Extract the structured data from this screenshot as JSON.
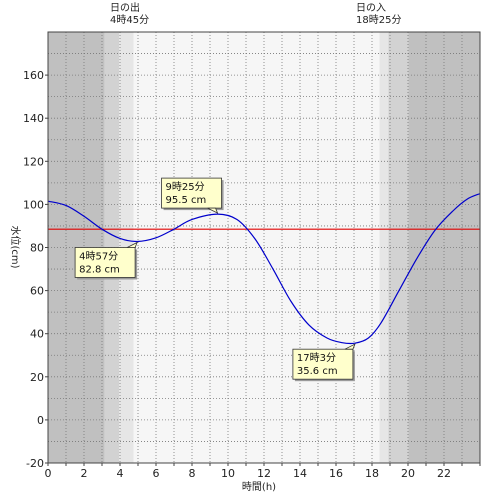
{
  "chart_data": {
    "type": "line",
    "xlabel": "時間(h)",
    "ylabel": "水位(cm)",
    "xlim": [
      0,
      24
    ],
    "ylim": [
      -20,
      180
    ],
    "x_ticks": [
      0,
      2,
      4,
      6,
      8,
      10,
      12,
      14,
      16,
      18,
      20,
      22
    ],
    "y_ticks": [
      -20,
      0,
      20,
      40,
      60,
      80,
      100,
      120,
      140,
      160
    ],
    "grid": true,
    "reference_level": 88.5,
    "sunrise": {
      "title": "日の出",
      "time_label": "4時45分",
      "hour": 4.75
    },
    "sunset": {
      "title": "日の入",
      "time_label": "18時25分",
      "hour": 18.4167
    },
    "series": [
      {
        "x": [
          0,
          1,
          2,
          3,
          4,
          4.95,
          6,
          7,
          8,
          9.42,
          10.5,
          11.5,
          12.5,
          13.5,
          14.5,
          15.5,
          16.3,
          17.05,
          17.8,
          18.5,
          19.5,
          20.5,
          21.5,
          22.5,
          23.3,
          24
        ],
        "values": [
          101.5,
          99.5,
          94.5,
          88.5,
          84.2,
          82.8,
          84.5,
          88.5,
          93,
          95.5,
          93,
          84,
          70,
          55,
          44,
          38,
          35.9,
          35.6,
          38,
          45,
          60,
          75,
          88,
          97,
          102.5,
          105
        ],
        "color": "#0000cc"
      }
    ],
    "annotations": [
      {
        "time": "4時57分",
        "level": "82.8 cm",
        "x": 4.95,
        "y": 82.8
      },
      {
        "time": "9時25分",
        "level": "95.5 cm",
        "x": 9.42,
        "y": 95.5
      },
      {
        "time": "17時3分",
        "level": "35.6 cm",
        "x": 17.05,
        "y": 35.6
      }
    ]
  },
  "colors": {
    "night": "#c0c0c0",
    "twilight_dark": "#d2d2d2",
    "twilight_light": "#e6e6e6",
    "day": "#f6f6f6",
    "curve": "#0000cc",
    "reference_line": "#e00000",
    "callout_fill": "#ffffcc"
  }
}
